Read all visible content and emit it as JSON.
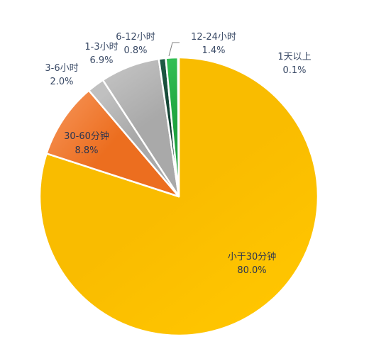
{
  "chart_data": {
    "type": "pie",
    "start_angle_deg": 0,
    "direction": "clockwise",
    "slices": [
      {
        "name": "小于30分钟",
        "pct": "80.0%",
        "value": 80.0,
        "color": "#F9BC00",
        "gradient": "#FFC500"
      },
      {
        "name": "30-60分钟",
        "pct": "8.8%",
        "value": 8.8,
        "color": "#EC6E1F",
        "gradient": "#F48C4C"
      },
      {
        "name": "3-6小时",
        "pct": "2.0%",
        "value": 2.0,
        "color": "#A9A9A9",
        "gradient": "#C0C0C0"
      },
      {
        "name": "1-3小时",
        "pct": "6.9%",
        "value": 6.9,
        "color": "#A9A9A9",
        "gradient": "#C0C0C0"
      },
      {
        "name": "6-12小时",
        "pct": "0.8%",
        "value": 0.8,
        "color": "#0F3D2E",
        "gradient": "#1E5A44"
      },
      {
        "name": "12-24小时",
        "pct": "1.4%",
        "value": 1.4,
        "color": "#1EA33E",
        "gradient": "#33BF55"
      },
      {
        "name": "1天以上",
        "pct": "0.1%",
        "value": 0.1,
        "color": "#7DC15C",
        "gradient": "#98D47B"
      }
    ]
  }
}
